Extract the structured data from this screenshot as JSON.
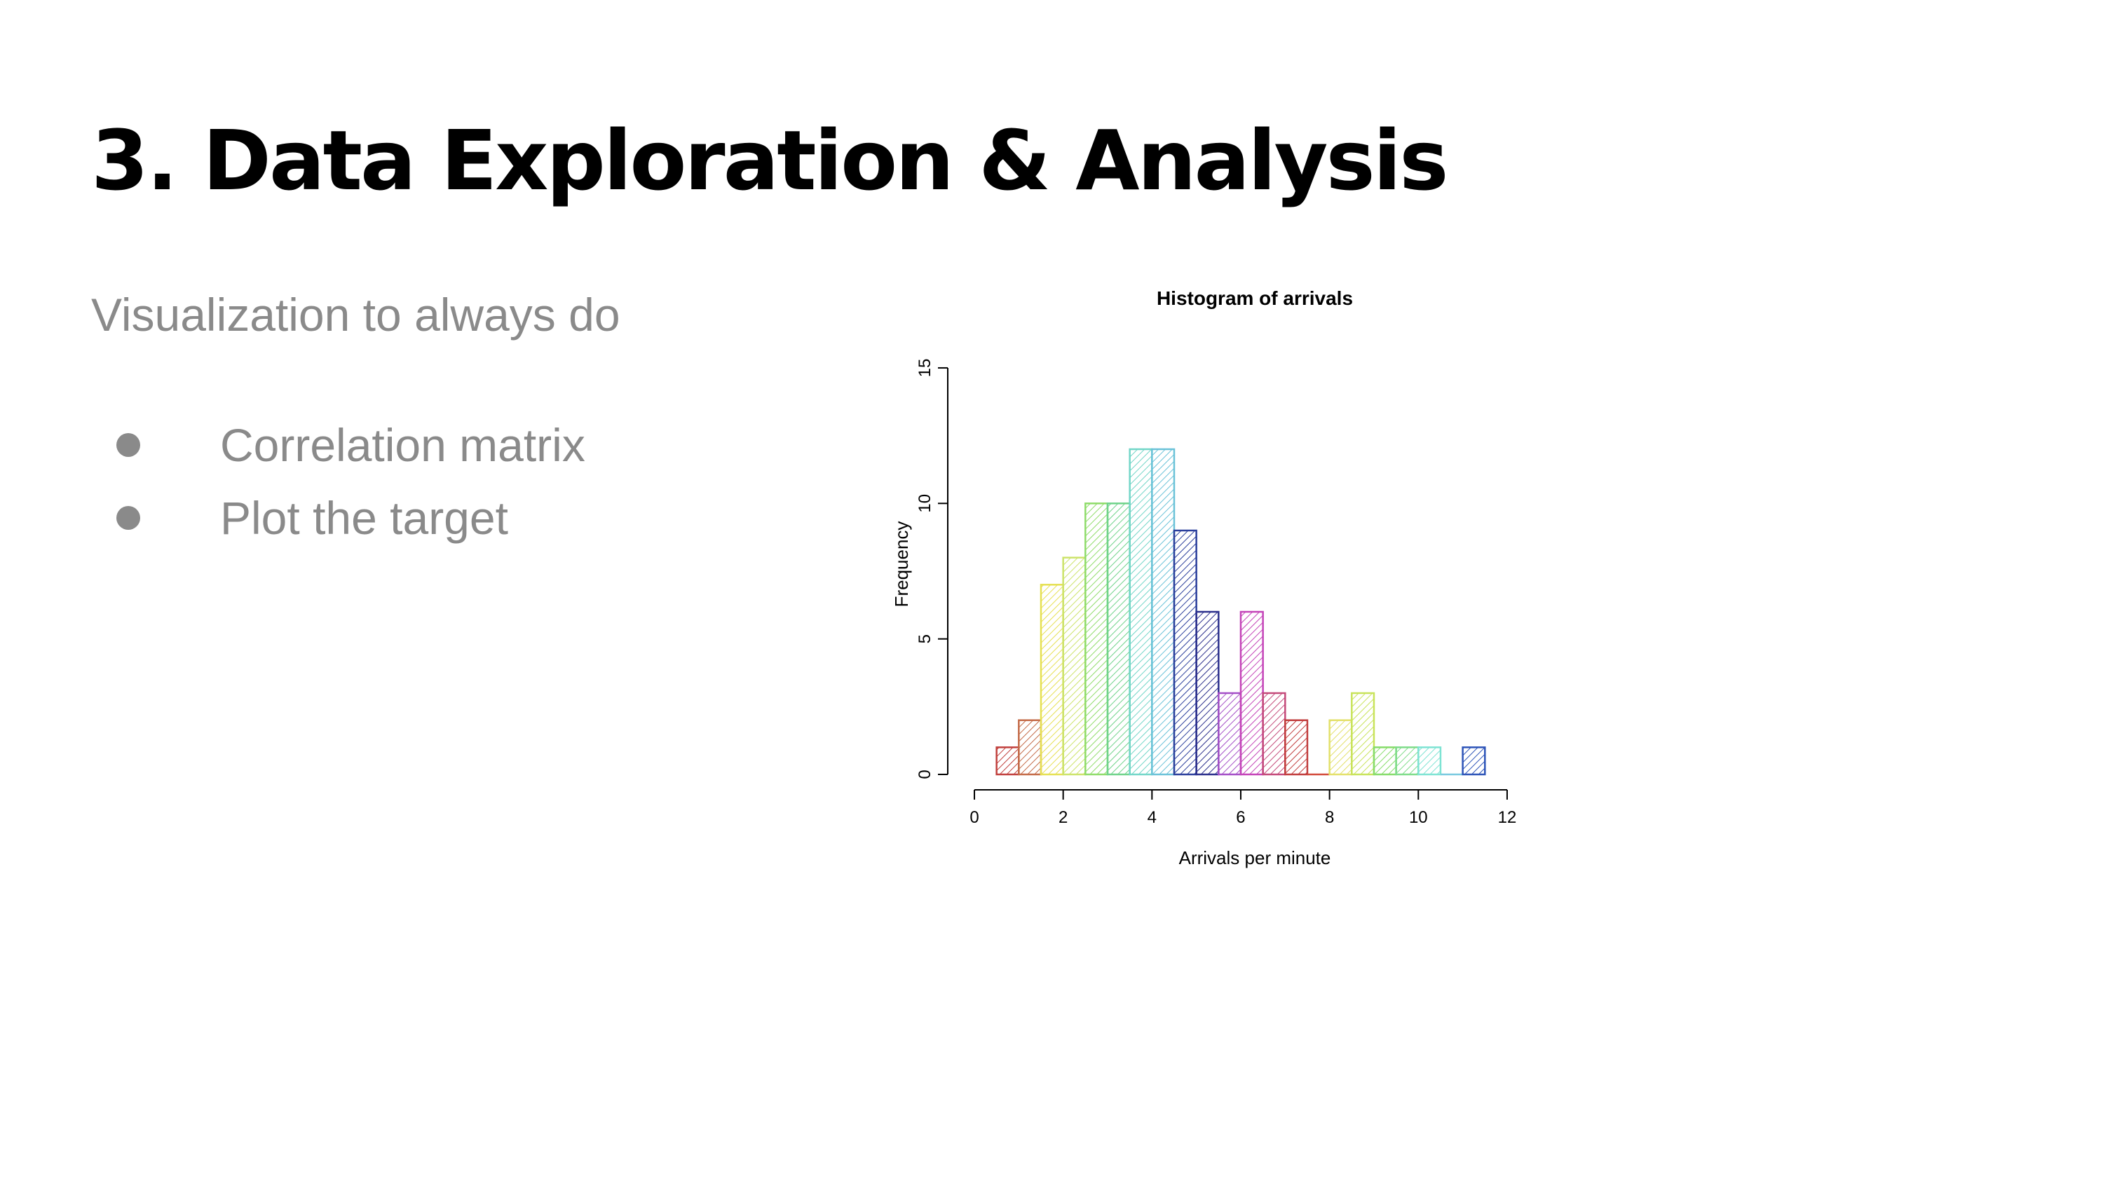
{
  "slide": {
    "title": "3. Data Exploration & Analysis",
    "subtitle": "Visualization to always do",
    "bullets": [
      "Correlation matrix",
      "Plot the target"
    ]
  },
  "chart_data": {
    "type": "bar",
    "title": "Histogram of arrivals",
    "xlabel": "Arrivals per minute",
    "ylabel": "Frequency",
    "bin_width": 0.5,
    "bin_starts": [
      0.5,
      1,
      1.5,
      2,
      2.5,
      3,
      3.5,
      4,
      4.5,
      5,
      5.5,
      6,
      6.5,
      7,
      7.5,
      8,
      8.5,
      9,
      9.5,
      10,
      10.5,
      11
    ],
    "values": [
      1,
      2,
      7,
      8,
      10,
      10,
      12,
      12,
      9,
      6,
      3,
      6,
      3,
      2,
      0,
      2,
      3,
      1,
      1,
      1,
      0,
      1
    ],
    "colors": [
      "#c1403d",
      "#c46b48",
      "#e6e052",
      "#cce36a",
      "#8fdc6a",
      "#6fd38a",
      "#72d6c8",
      "#6ac2d8",
      "#2b3f9c",
      "#2b2f8c",
      "#a44fc7",
      "#c443b8",
      "#c44a7a",
      "#c13c3c",
      "#d24a3a",
      "#e3e06a",
      "#c8e35a",
      "#86dc6a",
      "#7fdc8a",
      "#7ee3d3",
      "#79c9df",
      "#2d54b8"
    ],
    "xlim": [
      0,
      12
    ],
    "ylim": [
      0,
      15
    ],
    "x_ticks": [
      0,
      2,
      4,
      6,
      8,
      10,
      12
    ],
    "y_ticks": [
      0,
      5,
      10,
      15
    ],
    "grid": false
  }
}
